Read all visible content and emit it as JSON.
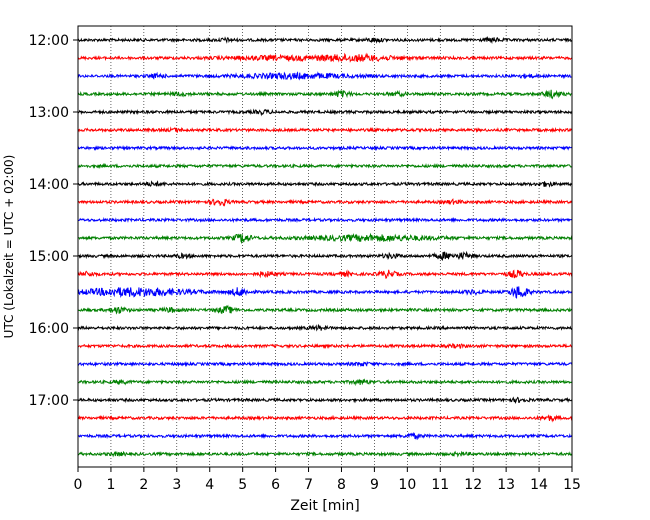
{
  "chart_data": {
    "type": "line",
    "title": "",
    "xlabel": "Zeit  [min]",
    "ylabel": "UTC (Lokalzeit = UTC + 02:00)",
    "xlim": [
      0,
      15
    ],
    "x_ticks": [
      "0",
      "1",
      "2",
      "3",
      "4",
      "5",
      "6",
      "7",
      "8",
      "9",
      "10",
      "11",
      "12",
      "13",
      "14",
      "15"
    ],
    "y_ticks": [
      "12:00",
      "13:00",
      "14:00",
      "15:00",
      "16:00",
      "17:00"
    ],
    "grid": "vertical dotted",
    "trace_interval_min": 15,
    "start_time": "12:00",
    "end_time": "17:45",
    "trace_colors": [
      "#000000",
      "#ff0000",
      "#0000ff",
      "#008000"
    ],
    "events": [
      {
        "trace": 0,
        "x": 4.5,
        "amp": 1.2
      },
      {
        "trace": 0,
        "x": 9.0,
        "amp": 1.5
      },
      {
        "trace": 0,
        "x": 12.6,
        "amp": 1.5
      },
      {
        "trace": 1,
        "x": 8.4,
        "amp": 2.6,
        "width": 1.2
      },
      {
        "trace": 1,
        "x": 6.0,
        "amp": 1.5,
        "width": 1.5
      },
      {
        "trace": 2,
        "x": 6.6,
        "amp": 2.2,
        "width": 1.6
      },
      {
        "trace": 2,
        "x": 2.4,
        "amp": 1.4
      },
      {
        "trace": 2,
        "x": 13.6,
        "amp": 1.2
      },
      {
        "trace": 3,
        "x": 8.0,
        "amp": 2.5
      },
      {
        "trace": 3,
        "x": 14.4,
        "amp": 3.2
      },
      {
        "trace": 3,
        "x": 3.1,
        "amp": 1.3
      },
      {
        "trace": 3,
        "x": 9.7,
        "amp": 1.3
      },
      {
        "trace": 4,
        "x": 5.6,
        "amp": 1.4
      },
      {
        "trace": 5,
        "x": 3.0,
        "amp": 1.2
      },
      {
        "trace": 8,
        "x": 2.3,
        "amp": 1.4
      },
      {
        "trace": 8,
        "x": 14.2,
        "amp": 1.6
      },
      {
        "trace": 9,
        "x": 4.3,
        "amp": 3.0
      },
      {
        "trace": 9,
        "x": 11.4,
        "amp": 1.4
      },
      {
        "trace": 11,
        "x": 5.0,
        "amp": 4.0
      },
      {
        "trace": 11,
        "x": 9.0,
        "amp": 2.5,
        "width": 1.8
      },
      {
        "trace": 12,
        "x": 11.1,
        "amp": 3.0
      },
      {
        "trace": 12,
        "x": 11.7,
        "amp": 2.6
      },
      {
        "trace": 12,
        "x": 9.5,
        "amp": 1.8
      },
      {
        "trace": 12,
        "x": 3.2,
        "amp": 1.4
      },
      {
        "trace": 13,
        "x": 5.7,
        "amp": 2.0
      },
      {
        "trace": 13,
        "x": 9.4,
        "amp": 3.0
      },
      {
        "trace": 13,
        "x": 13.3,
        "amp": 3.0
      },
      {
        "trace": 13,
        "x": 0.3,
        "amp": 1.6
      },
      {
        "trace": 13,
        "x": 8.1,
        "amp": 1.6
      },
      {
        "trace": 14,
        "x": 1.7,
        "amp": 3.8,
        "width": 1.6
      },
      {
        "trace": 14,
        "x": 4.9,
        "amp": 3.6
      },
      {
        "trace": 14,
        "x": 13.4,
        "amp": 6.0
      },
      {
        "trace": 14,
        "x": 12.0,
        "amp": 1.6
      },
      {
        "trace": 15,
        "x": 1.2,
        "amp": 2.8
      },
      {
        "trace": 15,
        "x": 4.5,
        "amp": 3.0
      },
      {
        "trace": 15,
        "x": 2.8,
        "amp": 1.6
      },
      {
        "trace": 16,
        "x": 7.3,
        "amp": 1.5
      },
      {
        "trace": 17,
        "x": 11.5,
        "amp": 1.2
      },
      {
        "trace": 18,
        "x": 8.6,
        "amp": 1.2
      },
      {
        "trace": 19,
        "x": 8.6,
        "amp": 1.8
      },
      {
        "trace": 19,
        "x": 1.3,
        "amp": 1.2
      },
      {
        "trace": 20,
        "x": 13.4,
        "amp": 1.5
      },
      {
        "trace": 21,
        "x": 14.3,
        "amp": 2.0
      },
      {
        "trace": 22,
        "x": 10.2,
        "amp": 1.8
      },
      {
        "trace": 23,
        "x": 1.2,
        "amp": 1.2
      },
      {
        "trace": 23,
        "x": 11.6,
        "amp": 1.2
      }
    ]
  }
}
